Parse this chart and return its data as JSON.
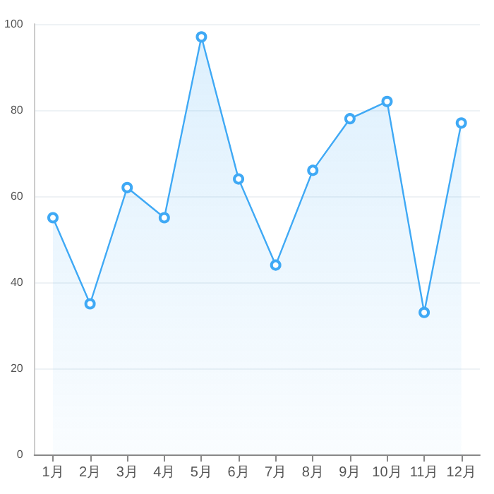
{
  "chart_data": {
    "type": "area",
    "categories": [
      "1月",
      "2月",
      "3月",
      "4月",
      "5月",
      "6月",
      "7月",
      "8月",
      "9月",
      "10月",
      "11月",
      "12月"
    ],
    "series": [
      {
        "color": "#3fa9f5",
        "values": [
          55,
          35,
          62,
          55,
          97,
          64,
          44,
          66,
          78,
          82,
          33,
          77
        ]
      }
    ],
    "ylim": [
      0,
      100
    ],
    "yticks": [
      0,
      20,
      40,
      60,
      80,
      100
    ],
    "grid": "y",
    "marker": "circle",
    "line_style": "solid"
  }
}
